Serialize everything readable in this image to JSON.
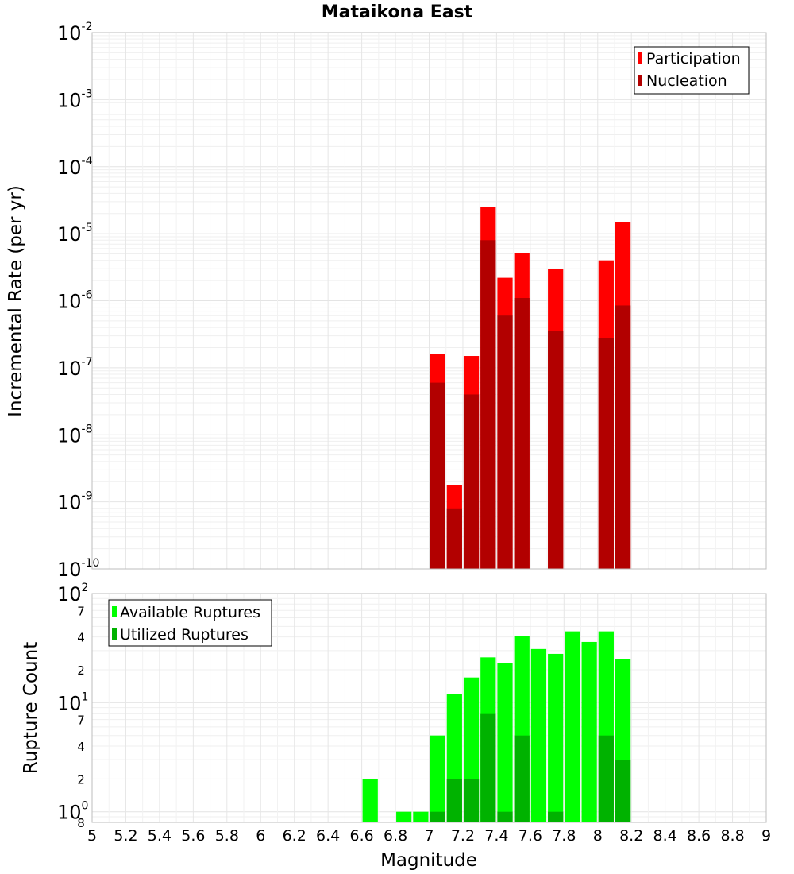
{
  "chart_data": [
    {
      "type": "bar",
      "title": "Mataikona East",
      "xlabel": "",
      "ylabel": "Incremental Rate (per yr)",
      "yscale": "log",
      "xlim": [
        5,
        9
      ],
      "ylim": [
        1e-10,
        0.01
      ],
      "y_ticks": [
        {
          "base": "10",
          "exp": "-2",
          "value": 0.01
        },
        {
          "base": "10",
          "exp": "-3",
          "value": 0.001
        },
        {
          "base": "10",
          "exp": "-4",
          "value": 0.0001
        },
        {
          "base": "10",
          "exp": "-5",
          "value": 1e-05
        },
        {
          "base": "10",
          "exp": "-6",
          "value": 1e-06
        },
        {
          "base": "10",
          "exp": "-7",
          "value": 1e-07
        },
        {
          "base": "10",
          "exp": "-8",
          "value": 1e-08
        },
        {
          "base": "10",
          "exp": "-9",
          "value": 1e-09
        },
        {
          "base": "10",
          "exp": "-10",
          "value": 1e-10
        }
      ],
      "legend_position": "top-right",
      "x": [
        7.05,
        7.15,
        7.25,
        7.35,
        7.45,
        7.55,
        7.75,
        8.05,
        8.15
      ],
      "series": [
        {
          "name": "Participation",
          "color": "#ff0000",
          "values": [
            1.6e-07,
            1.8e-09,
            1.5e-07,
            2.5e-05,
            2.2e-06,
            5.2e-06,
            3e-06,
            4e-06,
            1.5e-05
          ]
        },
        {
          "name": "Nucleation",
          "color": "#b20000",
          "values": [
            6e-08,
            8e-10,
            4e-08,
            8e-06,
            6e-07,
            1.1e-06,
            3.5e-07,
            2.8e-07,
            8.5e-07
          ]
        }
      ]
    },
    {
      "type": "bar",
      "title": "",
      "xlabel": "Magnitude",
      "ylabel": "Rupture Count",
      "yscale": "log",
      "xlim": [
        5,
        9
      ],
      "ylim": [
        0.8,
        100
      ],
      "x_ticks": [
        "5",
        "5.2",
        "5.4",
        "5.6",
        "5.8",
        "6",
        "6.2",
        "6.4",
        "6.6",
        "6.8",
        "7",
        "7.2",
        "7.4",
        "7.6",
        "7.8",
        "8",
        "8.2",
        "8.4",
        "8.6",
        "8.8",
        "9"
      ],
      "y_major_ticks": [
        {
          "base": "10",
          "exp": "2",
          "value": 100
        },
        {
          "base": "10",
          "exp": "1",
          "value": 10
        },
        {
          "base": "10",
          "exp": "0",
          "value": 1
        }
      ],
      "y_minor_ticks": [
        {
          "label": "7",
          "value": 70
        },
        {
          "label": "4",
          "value": 40
        },
        {
          "label": "2",
          "value": 20
        },
        {
          "label": "7",
          "value": 7
        },
        {
          "label": "4",
          "value": 4
        },
        {
          "label": "2",
          "value": 2
        },
        {
          "label": "8",
          "value": 0.8
        }
      ],
      "legend_position": "top-left",
      "x": [
        6.65,
        6.85,
        6.95,
        7.05,
        7.15,
        7.25,
        7.35,
        7.45,
        7.55,
        7.65,
        7.75,
        7.85,
        7.95,
        8.05,
        8.15
      ],
      "series": [
        {
          "name": "Available Ruptures",
          "color": "#00ff00",
          "values": [
            2,
            1,
            1,
            5,
            12,
            17,
            26,
            23,
            41,
            31,
            28,
            45,
            36,
            45,
            25
          ]
        },
        {
          "name": "Utilized Ruptures",
          "color": "#00b200",
          "values": [
            0,
            0,
            0,
            1,
            2,
            2,
            8,
            1,
            5,
            0,
            1,
            0,
            0,
            5,
            3
          ]
        }
      ]
    }
  ]
}
